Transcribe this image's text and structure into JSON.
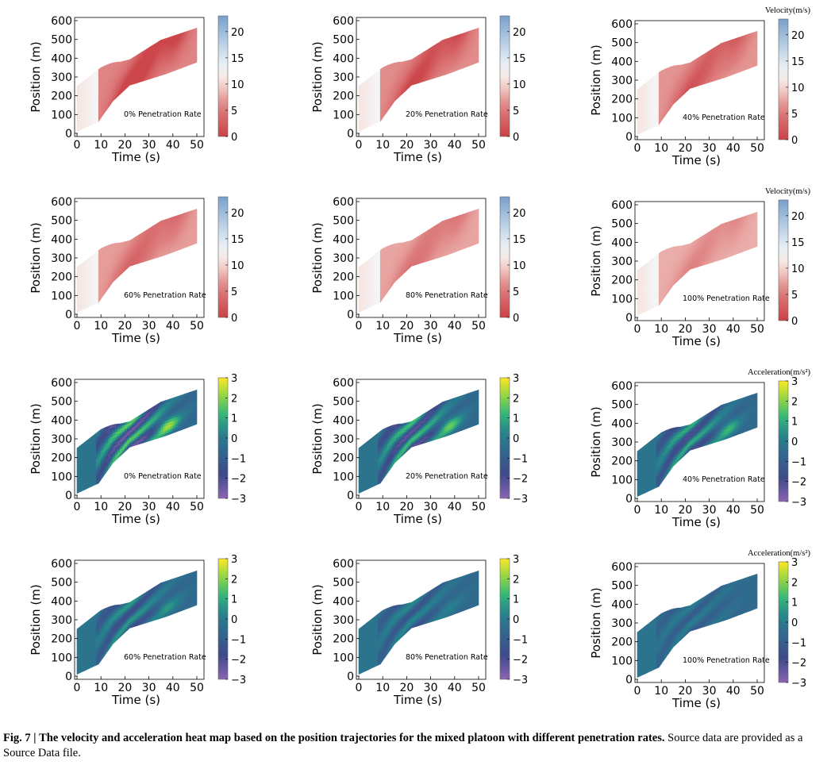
{
  "figure": {
    "caption_label": "Fig. 7 |",
    "caption_title": "The velocity and acceleration heat map based on the position trajectories for the mixed platoon with different penetration rates.",
    "caption_text": "Source data are provided as a Source Data file."
  },
  "chart_data": [
    {
      "type": "heatmap",
      "measure": "velocity",
      "annotation": "0% Penetration Rate",
      "xlabel": "Time (s)",
      "ylabel": "Position (m)",
      "xlim": [
        0,
        50
      ],
      "ylim": [
        0,
        600
      ],
      "xticks": [
        0,
        10,
        20,
        30,
        40,
        50
      ],
      "yticks": [
        0,
        100,
        200,
        300,
        400,
        500,
        600
      ],
      "colorbar": {
        "range": [
          0,
          23
        ],
        "ticks": [
          0,
          5,
          10,
          15,
          20
        ],
        "colormap": "RdBu"
      },
      "colorbar_title": ""
    },
    {
      "type": "heatmap",
      "measure": "velocity",
      "annotation": "20% Penetration Rate",
      "xlabel": "Time (s)",
      "ylabel": "Position (m)",
      "xlim": [
        0,
        50
      ],
      "ylim": [
        0,
        600
      ],
      "xticks": [
        0,
        10,
        20,
        30,
        40,
        50
      ],
      "yticks": [
        0,
        100,
        200,
        300,
        400,
        500,
        600
      ],
      "colorbar": {
        "range": [
          0,
          23
        ],
        "ticks": [
          0,
          5,
          10,
          15,
          20
        ],
        "colormap": "RdBu"
      },
      "colorbar_title": ""
    },
    {
      "type": "heatmap",
      "measure": "velocity",
      "annotation": "40% Penetration Rate",
      "xlabel": "Time (s)",
      "ylabel": "Position (m)",
      "xlim": [
        0,
        50
      ],
      "ylim": [
        0,
        600
      ],
      "xticks": [
        0,
        10,
        20,
        30,
        40,
        50
      ],
      "yticks": [
        0,
        100,
        200,
        300,
        400,
        500,
        600
      ],
      "colorbar": {
        "range": [
          0,
          23
        ],
        "ticks": [
          0,
          5,
          10,
          15,
          20
        ],
        "colormap": "RdBu"
      },
      "colorbar_title": "Velocity(m/s)"
    },
    {
      "type": "heatmap",
      "measure": "velocity",
      "annotation": "60% Penetration Rate",
      "xlabel": "Time (s)",
      "ylabel": "Position (m)",
      "xlim": [
        0,
        50
      ],
      "ylim": [
        0,
        600
      ],
      "xticks": [
        0,
        10,
        20,
        30,
        40,
        50
      ],
      "yticks": [
        0,
        100,
        200,
        300,
        400,
        500,
        600
      ],
      "colorbar": {
        "range": [
          0,
          23
        ],
        "ticks": [
          0,
          5,
          10,
          15,
          20
        ],
        "colormap": "RdBu"
      },
      "colorbar_title": ""
    },
    {
      "type": "heatmap",
      "measure": "velocity",
      "annotation": "80% Penetration Rate",
      "xlabel": "Time (s)",
      "ylabel": "Position (m)",
      "xlim": [
        0,
        50
      ],
      "ylim": [
        0,
        600
      ],
      "xticks": [
        0,
        10,
        20,
        30,
        40,
        50
      ],
      "yticks": [
        0,
        100,
        200,
        300,
        400,
        500,
        600
      ],
      "colorbar": {
        "range": [
          0,
          23
        ],
        "ticks": [
          0,
          5,
          10,
          15,
          20
        ],
        "colormap": "RdBu"
      },
      "colorbar_title": ""
    },
    {
      "type": "heatmap",
      "measure": "velocity",
      "annotation": "100% Penetration Rate",
      "xlabel": "Time (s)",
      "ylabel": "Position (m)",
      "xlim": [
        0,
        50
      ],
      "ylim": [
        0,
        600
      ],
      "xticks": [
        0,
        10,
        20,
        30,
        40,
        50
      ],
      "yticks": [
        0,
        100,
        200,
        300,
        400,
        500,
        600
      ],
      "colorbar": {
        "range": [
          0,
          23
        ],
        "ticks": [
          0,
          5,
          10,
          15,
          20
        ],
        "colormap": "RdBu"
      },
      "colorbar_title": "Velocity(m/s)"
    },
    {
      "type": "heatmap",
      "measure": "acceleration",
      "annotation": "0% Penetration Rate",
      "xlabel": "Time (s)",
      "ylabel": "Position (m)",
      "xlim": [
        0,
        50
      ],
      "ylim": [
        0,
        600
      ],
      "xticks": [
        0,
        10,
        20,
        30,
        40,
        50
      ],
      "yticks": [
        0,
        100,
        200,
        300,
        400,
        500,
        600
      ],
      "colorbar": {
        "range": [
          -3,
          3
        ],
        "ticks": [
          -3,
          -2,
          -1,
          0,
          1,
          2,
          3
        ],
        "colormap": "viridis"
      },
      "colorbar_title": ""
    },
    {
      "type": "heatmap",
      "measure": "acceleration",
      "annotation": "20% Penetration Rate",
      "xlabel": "Time (s)",
      "ylabel": "Position (m)",
      "xlim": [
        0,
        50
      ],
      "ylim": [
        0,
        600
      ],
      "xticks": [
        0,
        10,
        20,
        30,
        40,
        50
      ],
      "yticks": [
        0,
        100,
        200,
        300,
        400,
        500,
        600
      ],
      "colorbar": {
        "range": [
          -3,
          3
        ],
        "ticks": [
          -3,
          -2,
          -1,
          0,
          1,
          2,
          3
        ],
        "colormap": "viridis"
      },
      "colorbar_title": ""
    },
    {
      "type": "heatmap",
      "measure": "acceleration",
      "annotation": "40% Penetration Rate",
      "xlabel": "Time (s)",
      "ylabel": "Position (m)",
      "xlim": [
        0,
        50
      ],
      "ylim": [
        0,
        600
      ],
      "xticks": [
        0,
        10,
        20,
        30,
        40,
        50
      ],
      "yticks": [
        0,
        100,
        200,
        300,
        400,
        500,
        600
      ],
      "colorbar": {
        "range": [
          -3,
          3
        ],
        "ticks": [
          -3,
          -2,
          -1,
          0,
          1,
          2,
          3
        ],
        "colormap": "viridis"
      },
      "colorbar_title": "Acceleration(m/s²)"
    },
    {
      "type": "heatmap",
      "measure": "acceleration",
      "annotation": "60% Penetration Rate",
      "xlabel": "Time (s)",
      "ylabel": "Position (m)",
      "xlim": [
        0,
        50
      ],
      "ylim": [
        0,
        600
      ],
      "xticks": [
        0,
        10,
        20,
        30,
        40,
        50
      ],
      "yticks": [
        0,
        100,
        200,
        300,
        400,
        500,
        600
      ],
      "colorbar": {
        "range": [
          -3,
          3
        ],
        "ticks": [
          -3,
          -2,
          -1,
          0,
          1,
          2,
          3
        ],
        "colormap": "viridis"
      },
      "colorbar_title": ""
    },
    {
      "type": "heatmap",
      "measure": "acceleration",
      "annotation": "80% Penetration Rate",
      "xlabel": "Time (s)",
      "ylabel": "Position (m)",
      "xlim": [
        0,
        50
      ],
      "ylim": [
        0,
        600
      ],
      "xticks": [
        0,
        10,
        20,
        30,
        40,
        50
      ],
      "yticks": [
        0,
        100,
        200,
        300,
        400,
        500,
        600
      ],
      "colorbar": {
        "range": [
          -3,
          3
        ],
        "ticks": [
          -3,
          -2,
          -1,
          0,
          1,
          2,
          3
        ],
        "colormap": "viridis"
      },
      "colorbar_title": ""
    },
    {
      "type": "heatmap",
      "measure": "acceleration",
      "annotation": "100% Penetration Rate",
      "xlabel": "Time (s)",
      "ylabel": "Position (m)",
      "xlim": [
        0,
        50
      ],
      "ylim": [
        0,
        600
      ],
      "xticks": [
        0,
        10,
        20,
        30,
        40,
        50
      ],
      "yticks": [
        0,
        100,
        200,
        300,
        400,
        500,
        600
      ],
      "colorbar": {
        "range": [
          -3,
          3
        ],
        "ticks": [
          -3,
          -2,
          -1,
          0,
          1,
          2,
          3
        ],
        "colormap": "viridis"
      },
      "colorbar_title": "Acceleration(m/s²)"
    }
  ]
}
